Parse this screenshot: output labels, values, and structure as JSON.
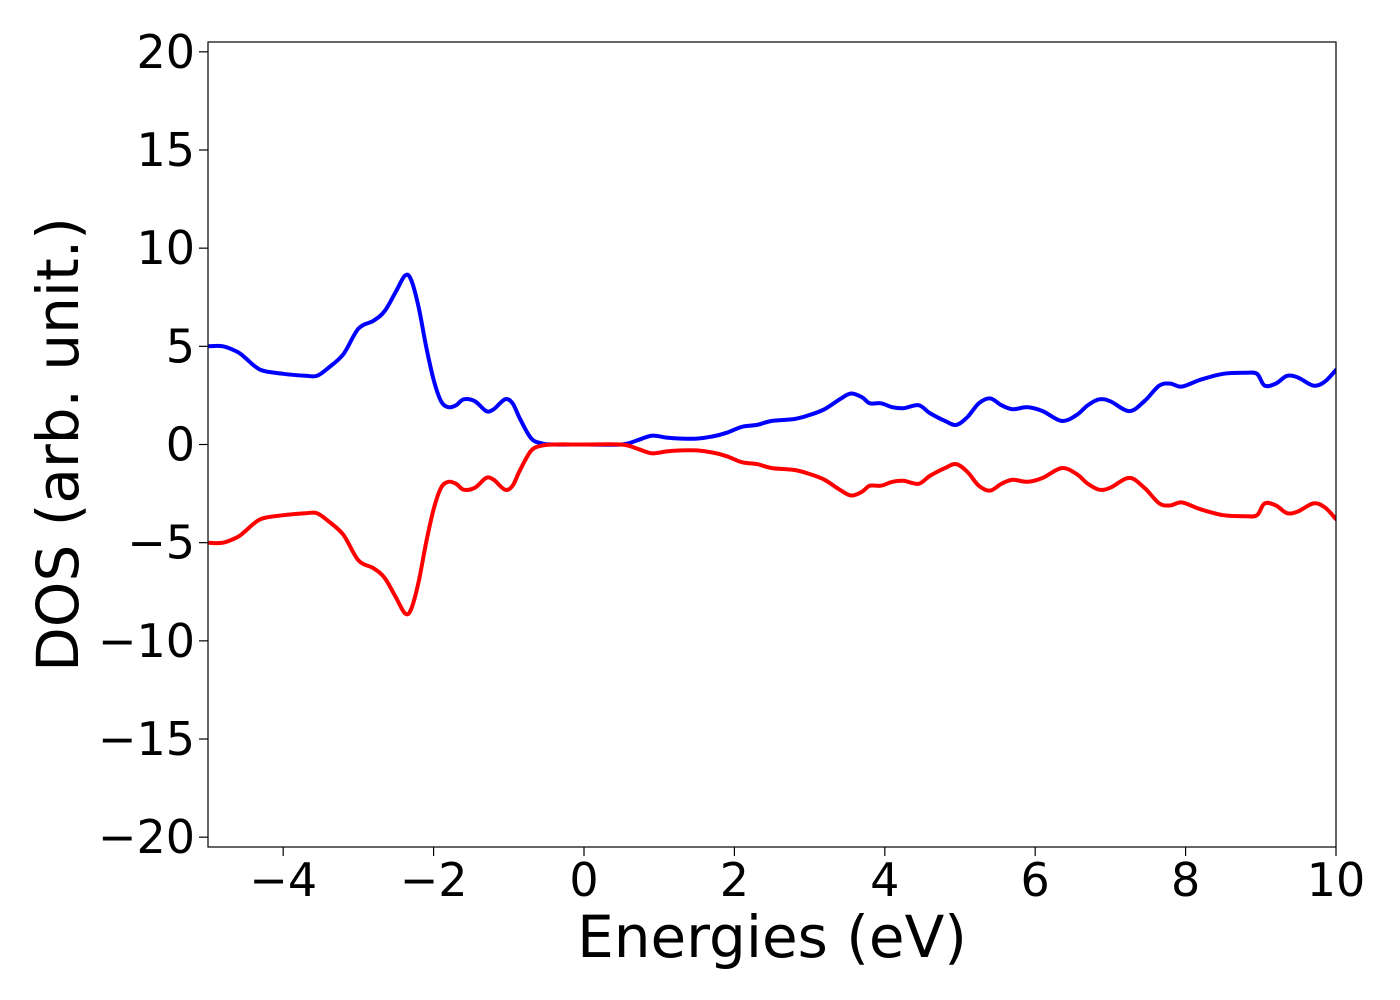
{
  "chart_data": {
    "type": "line",
    "title": "",
    "xlabel": "Energies (eV)",
    "ylabel": "DOS (arb. unit.)",
    "xlim": [
      -5,
      10
    ],
    "ylim": [
      -20.5,
      20.5
    ],
    "grid": false,
    "legend": "none",
    "x_ticks": [
      -4,
      -2,
      0,
      2,
      4,
      6,
      8,
      10
    ],
    "x_tick_labels": [
      "−4",
      "−2",
      "0",
      "2",
      "4",
      "6",
      "8",
      "10"
    ],
    "y_ticks": [
      -20,
      -15,
      -10,
      -5,
      0,
      5,
      10,
      15,
      20
    ],
    "y_tick_labels": [
      "−20",
      "−15",
      "−10",
      "−5",
      "0",
      "5",
      "10",
      "15",
      "20"
    ],
    "series": [
      {
        "color": "#0000ff",
        "x": [
          -5.0,
          -4.8,
          -4.6,
          -4.5,
          -4.3,
          -4.0,
          -3.7,
          -3.55,
          -3.4,
          -3.2,
          -3.0,
          -2.8,
          -2.65,
          -2.5,
          -2.38,
          -2.3,
          -2.2,
          -2.1,
          -2.0,
          -1.9,
          -1.8,
          -1.7,
          -1.6,
          -1.45,
          -1.3,
          -1.2,
          -1.05,
          -0.95,
          -0.85,
          -0.7,
          -0.55,
          -0.4,
          0.0,
          0.5,
          0.7,
          0.9,
          1.1,
          1.3,
          1.5,
          1.7,
          1.9,
          2.1,
          2.3,
          2.5,
          2.8,
          3.0,
          3.2,
          3.4,
          3.55,
          3.7,
          3.8,
          3.95,
          4.1,
          4.25,
          4.45,
          4.6,
          4.8,
          4.95,
          5.1,
          5.25,
          5.4,
          5.55,
          5.7,
          5.9,
          6.1,
          6.35,
          6.55,
          6.7,
          6.85,
          7.0,
          7.25,
          7.45,
          7.65,
          7.8,
          7.95,
          8.2,
          8.5,
          8.8,
          8.95,
          9.05,
          9.2,
          9.35,
          9.5,
          9.7,
          9.85,
          10.0
        ],
        "y": [
          5.0,
          5.0,
          4.7,
          4.4,
          3.8,
          3.6,
          3.5,
          3.5,
          3.9,
          4.6,
          5.9,
          6.3,
          6.8,
          7.8,
          8.6,
          8.4,
          7.0,
          5.0,
          3.3,
          2.2,
          1.9,
          2.0,
          2.3,
          2.2,
          1.7,
          1.8,
          2.3,
          2.1,
          1.3,
          0.3,
          0.05,
          0.0,
          0.0,
          0.0,
          0.2,
          0.45,
          0.35,
          0.3,
          0.3,
          0.4,
          0.6,
          0.9,
          1.0,
          1.2,
          1.3,
          1.5,
          1.8,
          2.3,
          2.6,
          2.4,
          2.1,
          2.1,
          1.9,
          1.85,
          2.0,
          1.6,
          1.2,
          1.0,
          1.4,
          2.1,
          2.35,
          2.0,
          1.8,
          1.9,
          1.7,
          1.2,
          1.5,
          2.0,
          2.3,
          2.2,
          1.7,
          2.2,
          3.0,
          3.1,
          2.95,
          3.3,
          3.6,
          3.65,
          3.6,
          3.0,
          3.1,
          3.5,
          3.4,
          3.0,
          3.2,
          3.8
        ]
      },
      {
        "color": "#ff0000",
        "x": [
          -5.0,
          -4.8,
          -4.6,
          -4.5,
          -4.3,
          -4.0,
          -3.7,
          -3.55,
          -3.4,
          -3.2,
          -3.0,
          -2.8,
          -2.65,
          -2.5,
          -2.38,
          -2.3,
          -2.2,
          -2.1,
          -2.0,
          -1.9,
          -1.8,
          -1.7,
          -1.6,
          -1.45,
          -1.3,
          -1.2,
          -1.05,
          -0.95,
          -0.85,
          -0.7,
          -0.55,
          -0.4,
          0.0,
          0.5,
          0.7,
          0.9,
          1.1,
          1.3,
          1.5,
          1.7,
          1.9,
          2.1,
          2.3,
          2.5,
          2.8,
          3.0,
          3.2,
          3.4,
          3.55,
          3.7,
          3.8,
          3.95,
          4.1,
          4.25,
          4.45,
          4.6,
          4.8,
          4.95,
          5.1,
          5.25,
          5.4,
          5.55,
          5.7,
          5.9,
          6.1,
          6.35,
          6.55,
          6.7,
          6.85,
          7.0,
          7.25,
          7.45,
          7.65,
          7.8,
          7.95,
          8.2,
          8.5,
          8.8,
          8.95,
          9.05,
          9.2,
          9.35,
          9.5,
          9.7,
          9.85,
          10.0
        ],
        "y": [
          -5.0,
          -5.0,
          -4.7,
          -4.4,
          -3.8,
          -3.6,
          -3.5,
          -3.5,
          -3.9,
          -4.6,
          -5.9,
          -6.3,
          -6.8,
          -7.8,
          -8.6,
          -8.4,
          -7.0,
          -5.0,
          -3.3,
          -2.2,
          -1.9,
          -2.0,
          -2.3,
          -2.2,
          -1.7,
          -1.8,
          -2.3,
          -2.1,
          -1.3,
          -0.3,
          -0.05,
          0.0,
          0.0,
          0.0,
          -0.2,
          -0.45,
          -0.35,
          -0.3,
          -0.3,
          -0.4,
          -0.6,
          -0.9,
          -1.0,
          -1.2,
          -1.3,
          -1.5,
          -1.8,
          -2.3,
          -2.6,
          -2.4,
          -2.1,
          -2.1,
          -1.9,
          -1.85,
          -2.0,
          -1.6,
          -1.2,
          -1.0,
          -1.4,
          -2.1,
          -2.35,
          -2.0,
          -1.8,
          -1.9,
          -1.7,
          -1.2,
          -1.5,
          -2.0,
          -2.3,
          -2.2,
          -1.7,
          -2.2,
          -3.0,
          -3.1,
          -2.95,
          -3.3,
          -3.6,
          -3.65,
          -3.6,
          -3.0,
          -3.1,
          -3.5,
          -3.4,
          -3.0,
          -3.2,
          -3.8
        ]
      }
    ]
  }
}
